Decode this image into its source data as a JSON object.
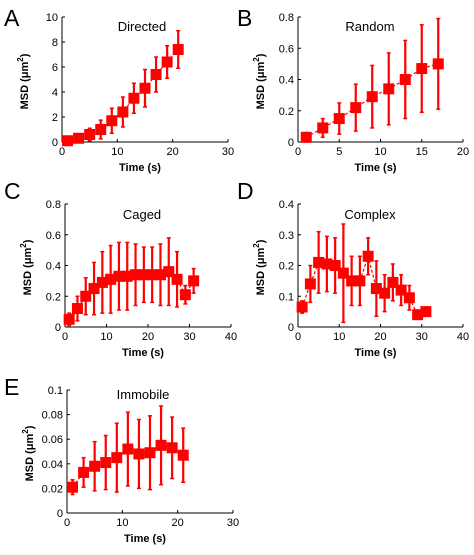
{
  "colors": {
    "marker": "#ff0000",
    "axis": "#000000",
    "background": "#ffffff"
  },
  "chart_data": [
    {
      "panel": "A",
      "type": "scatter",
      "title": "Directed",
      "xlabel": "Time (s)",
      "ylabel_main": "MSD (μm",
      "ylabel_sup": "2",
      "ylabel_end": ")",
      "xlim": [
        0,
        30
      ],
      "ylim": [
        0,
        10
      ],
      "xticks": [
        "0",
        "10",
        "20",
        "30"
      ],
      "yticks": [
        "0",
        "2",
        "4",
        "6",
        "8",
        "10"
      ],
      "x": [
        1,
        3,
        5,
        7,
        9,
        11,
        13,
        15,
        17,
        19,
        21
      ],
      "y": [
        0.1,
        0.3,
        0.6,
        1.0,
        1.7,
        2.4,
        3.5,
        4.3,
        5.4,
        6.4,
        7.4
      ],
      "err": [
        0.1,
        0.25,
        0.5,
        0.75,
        1.0,
        1.2,
        1.2,
        1.5,
        1.4,
        1.3,
        1.5
      ]
    },
    {
      "panel": "B",
      "type": "scatter",
      "title": "Random",
      "xlabel": "Time (s)",
      "ylabel_main": "MSD (μm",
      "ylabel_sup": "2",
      "ylabel_end": ")",
      "xlim": [
        0,
        20
      ],
      "ylim": [
        0,
        0.8
      ],
      "xticks": [
        "0",
        "5",
        "10",
        "15",
        "20"
      ],
      "yticks": [
        "0",
        "0.2",
        "0.4",
        "0.6",
        "0.8"
      ],
      "x": [
        1,
        3,
        5,
        7,
        9,
        11,
        13,
        15,
        17
      ],
      "y": [
        0.03,
        0.09,
        0.15,
        0.22,
        0.29,
        0.34,
        0.4,
        0.47,
        0.5
      ],
      "err": [
        0.03,
        0.06,
        0.1,
        0.15,
        0.2,
        0.23,
        0.25,
        0.28,
        0.29
      ]
    },
    {
      "panel": "C",
      "type": "scatter",
      "title": "Caged",
      "xlabel": "Time (s)",
      "ylabel_main": "MSD (μm",
      "ylabel_sup": "2",
      "ylabel_end": ")",
      "xlim": [
        0,
        40
      ],
      "ylim": [
        0,
        0.8
      ],
      "xticks": [
        "0",
        "10",
        "20",
        "30",
        "40"
      ],
      "yticks": [
        "0",
        "0.2",
        "0.4",
        "0.6",
        "0.8"
      ],
      "x": [
        1,
        3,
        5,
        7,
        9,
        11,
        13,
        15,
        17,
        19,
        21,
        23,
        25,
        27,
        29,
        31
      ],
      "y": [
        0.05,
        0.12,
        0.2,
        0.25,
        0.29,
        0.31,
        0.33,
        0.33,
        0.34,
        0.34,
        0.34,
        0.34,
        0.36,
        0.31,
        0.21,
        0.3
      ],
      "err": [
        0.04,
        0.08,
        0.12,
        0.17,
        0.2,
        0.22,
        0.22,
        0.22,
        0.2,
        0.18,
        0.18,
        0.2,
        0.22,
        0.18,
        0.06,
        0.08
      ]
    },
    {
      "panel": "D",
      "type": "scatter",
      "title": "Complex",
      "xlabel": "Time (s)",
      "ylabel_main": "MSD (μm",
      "ylabel_sup": "2",
      "ylabel_end": ")",
      "xlim": [
        0,
        40
      ],
      "ylim": [
        0,
        0.4
      ],
      "xticks": [
        "0",
        "10",
        "20",
        "30",
        "40"
      ],
      "yticks": [
        "0",
        "0.1",
        "0.2",
        "0.3",
        "0.4"
      ],
      "x": [
        1,
        3,
        5,
        7,
        9,
        11,
        13,
        15,
        17,
        19,
        21,
        23,
        25,
        27,
        29,
        31
      ],
      "y": [
        0.065,
        0.14,
        0.21,
        0.205,
        0.2,
        0.175,
        0.15,
        0.15,
        0.23,
        0.125,
        0.11,
        0.145,
        0.12,
        0.095,
        0.04,
        0.05
      ],
      "err": [
        0.02,
        0.06,
        0.1,
        0.09,
        0.09,
        0.16,
        0.08,
        0.08,
        0.06,
        0.09,
        0.06,
        0.06,
        0.05,
        0.04,
        0.01,
        0.015
      ]
    },
    {
      "panel": "E",
      "type": "scatter",
      "title": "Immobile",
      "xlabel": "Time (s)",
      "ylabel_main": "MSD (μm",
      "ylabel_sup": "2",
      "ylabel_end": ")",
      "xlim": [
        0,
        30
      ],
      "ylim": [
        0,
        0.1
      ],
      "xticks": [
        "0",
        "10",
        "20",
        "30"
      ],
      "yticks": [
        "0",
        "0.02",
        "0.04",
        "0.06",
        "0.08",
        "0.1"
      ],
      "x": [
        1,
        3,
        5,
        7,
        9,
        11,
        13,
        15,
        17,
        19,
        21
      ],
      "y": [
        0.021,
        0.033,
        0.038,
        0.041,
        0.045,
        0.052,
        0.048,
        0.049,
        0.055,
        0.053,
        0.047
      ],
      "err": [
        0.006,
        0.012,
        0.02,
        0.022,
        0.028,
        0.03,
        0.028,
        0.03,
        0.032,
        0.025,
        0.022
      ]
    }
  ]
}
